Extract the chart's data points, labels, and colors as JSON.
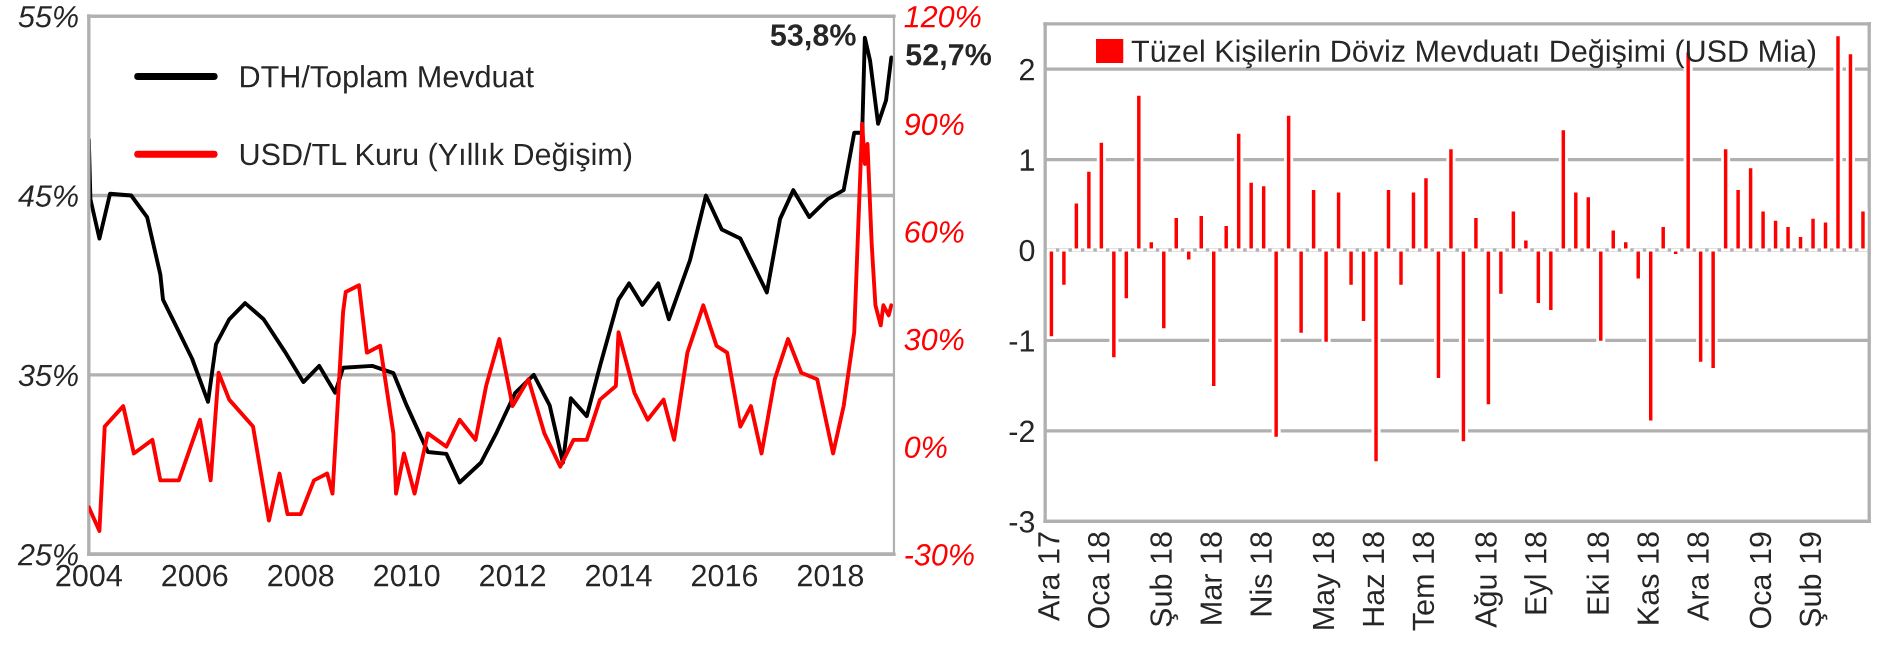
{
  "chart_data": [
    {
      "type": "line",
      "xlim": [
        2004,
        2019.2
      ],
      "xticks": [
        2004,
        2006,
        2008,
        2010,
        2012,
        2014,
        2016,
        2018
      ],
      "ylim": [
        25,
        55
      ],
      "yticks": [
        {
          "value": 25,
          "label": "25%"
        },
        {
          "value": 35,
          "label": "35%"
        },
        {
          "value": 45,
          "label": "45%"
        },
        {
          "value": 55,
          "label": "55%"
        }
      ],
      "y2lim": [
        -30,
        120
      ],
      "y2ticks": [
        {
          "value": -30,
          "label": "-30%"
        },
        {
          "value": 0,
          "label": "0%"
        },
        {
          "value": 30,
          "label": "30%"
        },
        {
          "value": 60,
          "label": "60%"
        },
        {
          "value": 90,
          "label": "90%"
        },
        {
          "value": 120,
          "label": "120%"
        }
      ],
      "grid": "y",
      "legend": "top left",
      "annotations": [
        {
          "text": "53,8%",
          "x": 2018.65,
          "y": 53.8
        },
        {
          "text": "52,7%",
          "x": 2019.15,
          "y": 52.7
        }
      ],
      "series": [
        {
          "name": "DTH/Toplam Mevduat",
          "color": "#000000",
          "x": [
            2004.0,
            2004.03,
            2004.2,
            2004.4,
            2004.8,
            2005.1,
            2005.35,
            2005.4,
            2005.65,
            2005.95,
            2006.25,
            2006.4,
            2006.65,
            2006.95,
            2007.3,
            2007.7,
            2008.05,
            2008.35,
            2008.65,
            2008.8,
            2009.35,
            2009.75,
            2010.0,
            2010.4,
            2010.75,
            2011.0,
            2011.4,
            2011.7,
            2012.05,
            2012.4,
            2012.7,
            2012.95,
            2013.1,
            2013.4,
            2013.65,
            2014.0,
            2014.2,
            2014.45,
            2014.75,
            2014.95,
            2015.35,
            2015.65,
            2015.95,
            2016.3,
            2016.55,
            2016.8,
            2017.05,
            2017.3,
            2017.6,
            2017.95,
            2018.25,
            2018.45,
            2018.6,
            2018.65,
            2018.75,
            2018.9,
            2019.05,
            2019.15
          ],
          "values": [
            48.1,
            44.8,
            42.6,
            45.1,
            45.0,
            43.8,
            40.6,
            39.2,
            37.7,
            35.9,
            33.5,
            36.7,
            38.1,
            39.0,
            38.1,
            36.3,
            34.6,
            35.5,
            34.0,
            35.4,
            35.5,
            35.1,
            33.3,
            30.7,
            30.6,
            29.0,
            30.1,
            31.8,
            34.0,
            35.0,
            33.3,
            30.1,
            33.7,
            32.7,
            35.5,
            39.2,
            40.1,
            38.9,
            40.1,
            38.1,
            41.4,
            45.0,
            43.1,
            42.6,
            41.1,
            39.6,
            43.7,
            45.3,
            43.8,
            44.8,
            45.3,
            48.5,
            48.5,
            53.8,
            52.5,
            49.0,
            50.3,
            52.7
          ]
        },
        {
          "name": "USD/TL Kuru (Yıllık Değişim)",
          "color": "#ff0000",
          "axis": "y2",
          "x": [
            2004.0,
            2004.2,
            2004.3,
            2004.65,
            2004.85,
            2005.2,
            2005.35,
            2005.7,
            2006.1,
            2006.3,
            2006.45,
            2006.65,
            2007.1,
            2007.4,
            2007.6,
            2007.75,
            2008.0,
            2008.25,
            2008.5,
            2008.6,
            2008.8,
            2008.85,
            2009.1,
            2009.25,
            2009.5,
            2009.75,
            2009.8,
            2009.95,
            2010.15,
            2010.4,
            2010.75,
            2011.0,
            2011.3,
            2011.5,
            2011.75,
            2012.0,
            2012.3,
            2012.6,
            2012.9,
            2013.15,
            2013.4,
            2013.65,
            2013.95,
            2014.0,
            2014.3,
            2014.55,
            2014.85,
            2015.05,
            2015.3,
            2015.6,
            2015.85,
            2016.05,
            2016.3,
            2016.5,
            2016.7,
            2016.95,
            2017.2,
            2017.45,
            2017.75,
            2018.05,
            2018.25,
            2018.45,
            2018.6,
            2018.65,
            2018.7,
            2018.78,
            2018.85,
            2018.95,
            2019.0,
            2019.1,
            2019.15
          ],
          "values": [
            -16.9,
            -23.5,
            5.6,
            11.3,
            -1.9,
            1.9,
            -9.4,
            -9.4,
            7.5,
            -9.4,
            20.6,
            13.1,
            5.6,
            -20.6,
            -7.5,
            -18.8,
            -18.8,
            -9.4,
            -7.5,
            -13.1,
            37.5,
            43.1,
            45,
            26.2,
            28.1,
            3.7,
            -13.1,
            -1.9,
            -13.1,
            3.7,
            0,
            7.5,
            1.9,
            16.9,
            30,
            11.3,
            18.8,
            3.7,
            -5.6,
            1.9,
            1.9,
            13.1,
            16.9,
            31.9,
            15,
            7.5,
            13.1,
            1.9,
            26.2,
            39.4,
            28.1,
            26.2,
            5.6,
            11.3,
            -1.9,
            18.8,
            30,
            20.6,
            18.8,
            -1.9,
            11.3,
            31.9,
            90,
            78.8,
            84.4,
            56.3,
            39.4,
            33.8,
            39.4,
            36.6,
            39.4
          ]
        }
      ]
    },
    {
      "type": "bar",
      "ylim": [
        -3,
        2.5
      ],
      "yticks": [
        -3,
        -2,
        -1,
        0,
        1,
        2
      ],
      "grid": "y",
      "legend": "top",
      "categories": [
        "Ara 17",
        null,
        null,
        null,
        "Oca 18",
        null,
        null,
        null,
        null,
        "Şub 18",
        null,
        null,
        null,
        "Mar 18",
        null,
        null,
        null,
        "Nis 18",
        null,
        null,
        null,
        null,
        "May 18",
        null,
        null,
        null,
        "Haz 18",
        null,
        null,
        null,
        "Tem 18",
        null,
        null,
        null,
        null,
        "Ağu 18",
        null,
        null,
        null,
        "Eyl 18",
        null,
        null,
        null,
        null,
        "Eki 18",
        null,
        null,
        null,
        "Kas 18",
        null,
        null,
        null,
        "Ara 18",
        null,
        null,
        null,
        null,
        "Oca 19",
        null,
        null,
        null,
        "Şub 19",
        null,
        null,
        null,
        null
      ],
      "series": [
        {
          "name": "Tüzel Kişilerin Döviz Mevduatı Değişimi (USD Mia)",
          "color": "#ff0000",
          "values": [
            -0.97,
            -0.4,
            0.53,
            0.88,
            1.2,
            -1.2,
            -0.55,
            1.72,
            0.1,
            -0.88,
            0.37,
            -0.12,
            0.39,
            -1.52,
            0.28,
            1.3,
            0.76,
            0.72,
            -2.08,
            1.5,
            -0.93,
            0.68,
            -1.03,
            0.65,
            -0.4,
            -0.8,
            -2.35,
            0.68,
            -0.4,
            0.65,
            0.81,
            -1.43,
            1.13,
            -2.13,
            0.37,
            -1.72,
            -0.5,
            0.44,
            0.12,
            -0.6,
            -0.68,
            1.34,
            0.65,
            0.6,
            -1.02,
            0.23,
            0.1,
            -0.33,
            -1.9,
            0.27,
            -0.06,
            2.2,
            -1.25,
            -1.32,
            1.13,
            0.68,
            0.92,
            0.44,
            0.34,
            0.27,
            0.16,
            0.36,
            0.32,
            2.38,
            2.18,
            0.44
          ]
        }
      ]
    }
  ]
}
